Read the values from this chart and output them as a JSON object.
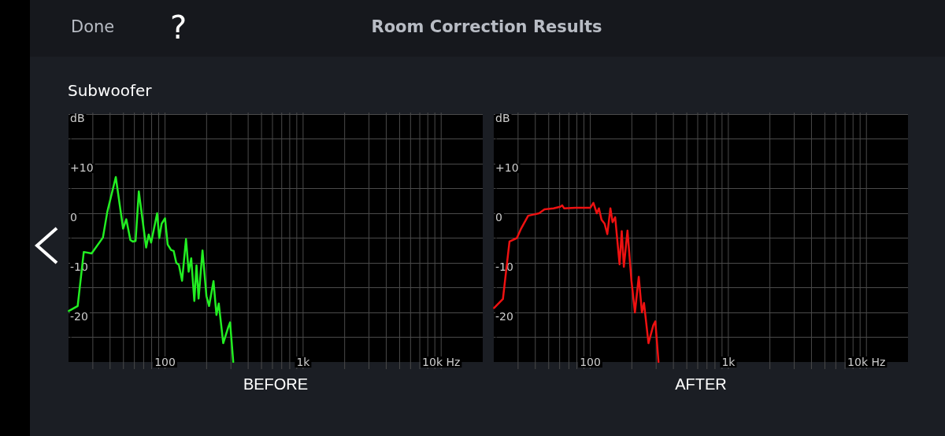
{
  "chart_data": [
    {
      "type": "line",
      "title": "Room Correction Results",
      "subtitle": "Subwoofer",
      "annotations": [
        "Done",
        "?"
      ],
      "xlabel": "BEFORE",
      "log": "x",
      "grid": true,
      "marker": "none",
      "xlim": [
        20,
        20000
      ],
      "xticks": [
        {
          "value": 30,
          "label": null
        },
        {
          "value": 40,
          "label": null
        },
        {
          "value": 50,
          "label": null
        },
        {
          "value": 60,
          "label": null
        },
        {
          "value": 70,
          "label": null
        },
        {
          "value": 80,
          "label": null
        },
        {
          "value": 90,
          "label": null
        },
        100,
        {
          "value": 200,
          "label": null
        },
        {
          "value": 300,
          "label": null
        },
        {
          "value": 400,
          "label": null
        },
        {
          "value": 500,
          "label": null
        },
        {
          "value": 600,
          "label": null
        },
        {
          "value": 700,
          "label": null
        },
        {
          "value": 800,
          "label": null
        },
        {
          "value": 900,
          "label": null
        },
        {
          "value": 1000,
          "label": "1k"
        },
        {
          "value": 2000,
          "label": null
        },
        {
          "value": 3000,
          "label": null
        },
        {
          "value": 4000,
          "label": null
        },
        {
          "value": 5000,
          "label": null
        },
        {
          "value": 6000,
          "label": null
        },
        {
          "value": 7000,
          "label": null
        },
        {
          "value": 8000,
          "label": null
        },
        {
          "value": 9000,
          "label": null
        },
        {
          "value": 10000,
          "label": "10k Hz"
        }
      ],
      "ylim": [
        -30,
        20
      ],
      "yticks": [
        {
          "value": -25,
          "label": null
        },
        -20,
        {
          "value": -15,
          "label": null
        },
        -10,
        {
          "value": -5,
          "label": null
        },
        0,
        {
          "value": 5,
          "label": null
        },
        {
          "value": 10,
          "label": "+10"
        },
        {
          "value": 15,
          "label": null
        },
        {
          "value": 20,
          "label": "dB"
        }
      ],
      "x": [
        20.1,
        23.3,
        25.8,
        29.4,
        35.5,
        38.2,
        44,
        49.7,
        52.4,
        56.1,
        58.4,
        61.2,
        64.6,
        73,
        76.2,
        79.3,
        87.7,
        90.8,
        94.5,
        100,
        104.5,
        110.6,
        115.5,
        120.7,
        126,
        132.9,
        141.9,
        148.3,
        154.8,
        163,
        169,
        175,
        186.8,
        199.5,
        208.5,
        224.5,
        235.7,
        245,
        264,
        286,
        296,
        312
      ],
      "series": [
        {
          "color": "#22ee22",
          "values": [
            -19.7,
            -18.7,
            -7.8,
            -8.1,
            -4.9,
            0.3,
            7.3,
            -3.1,
            -1.2,
            -5.4,
            -5.7,
            -5.6,
            4.4,
            -6.9,
            -4.3,
            -5.9,
            0,
            -5,
            -2.1,
            -1,
            -6.3,
            -7.4,
            -7.6,
            -10,
            -10.4,
            -13.6,
            -5.2,
            -11.8,
            -9.1,
            -17.7,
            -10.5,
            -17.2,
            -7.5,
            -16.7,
            -18.7,
            -13.7,
            -20.5,
            -18.2,
            -26.2,
            -23.1,
            -22,
            -30
          ]
        }
      ]
    },
    {
      "type": "line",
      "xlabel": "AFTER",
      "log": "x",
      "grid": true,
      "marker": "none",
      "xlim": [
        20,
        20000
      ],
      "xticks": [
        {
          "value": 30,
          "label": null
        },
        {
          "value": 40,
          "label": null
        },
        {
          "value": 50,
          "label": null
        },
        {
          "value": 60,
          "label": null
        },
        {
          "value": 70,
          "label": null
        },
        {
          "value": 80,
          "label": null
        },
        {
          "value": 90,
          "label": null
        },
        100,
        {
          "value": 200,
          "label": null
        },
        {
          "value": 300,
          "label": null
        },
        {
          "value": 400,
          "label": null
        },
        {
          "value": 500,
          "label": null
        },
        {
          "value": 600,
          "label": null
        },
        {
          "value": 700,
          "label": null
        },
        {
          "value": 800,
          "label": null
        },
        {
          "value": 900,
          "label": null
        },
        {
          "value": 1000,
          "label": "1k"
        },
        {
          "value": 2000,
          "label": null
        },
        {
          "value": 3000,
          "label": null
        },
        {
          "value": 4000,
          "label": null
        },
        {
          "value": 5000,
          "label": null
        },
        {
          "value": 6000,
          "label": null
        },
        {
          "value": 7000,
          "label": null
        },
        {
          "value": 8000,
          "label": null
        },
        {
          "value": 9000,
          "label": null
        },
        {
          "value": 10000,
          "label": "10k Hz"
        }
      ],
      "ylim": [
        -30,
        20
      ],
      "yticks": [
        {
          "value": -25,
          "label": null
        },
        -20,
        {
          "value": -15,
          "label": null
        },
        -10,
        {
          "value": -5,
          "label": null
        },
        0,
        {
          "value": 5,
          "label": null
        },
        {
          "value": 10,
          "label": "+10"
        },
        {
          "value": 15,
          "label": null
        },
        {
          "value": 20,
          "label": "dB"
        }
      ],
      "x": [
        20.1,
        23.3,
        26,
        29.4,
        31.4,
        35.5,
        38.2,
        42.6,
        46.6,
        54.2,
        60.5,
        62.6,
        64.6,
        78.6,
        93.6,
        100,
        105.4,
        111.5,
        115.5,
        120.7,
        127,
        132.9,
        139.9,
        145,
        151.5,
        163,
        169,
        175,
        186,
        198.7,
        210.5,
        224.5,
        236.6,
        245,
        264,
        286,
        296,
        312
      ],
      "series": [
        {
          "color": "#ee1111",
          "values": [
            -19.1,
            -17.3,
            -5.7,
            -5,
            -3.2,
            -0.5,
            -0.3,
            0,
            0.8,
            1,
            1.3,
            1.6,
            1,
            1.1,
            1.1,
            1.1,
            2.1,
            0,
            1,
            -1.3,
            -2.1,
            -4.2,
            1,
            -1.8,
            -0.8,
            -10.3,
            -3.6,
            -10.8,
            -3.5,
            -13.6,
            -20,
            -12.8,
            -20,
            -18.1,
            -26.2,
            -22.6,
            -21.8,
            -30
          ]
        }
      ]
    }
  ]
}
